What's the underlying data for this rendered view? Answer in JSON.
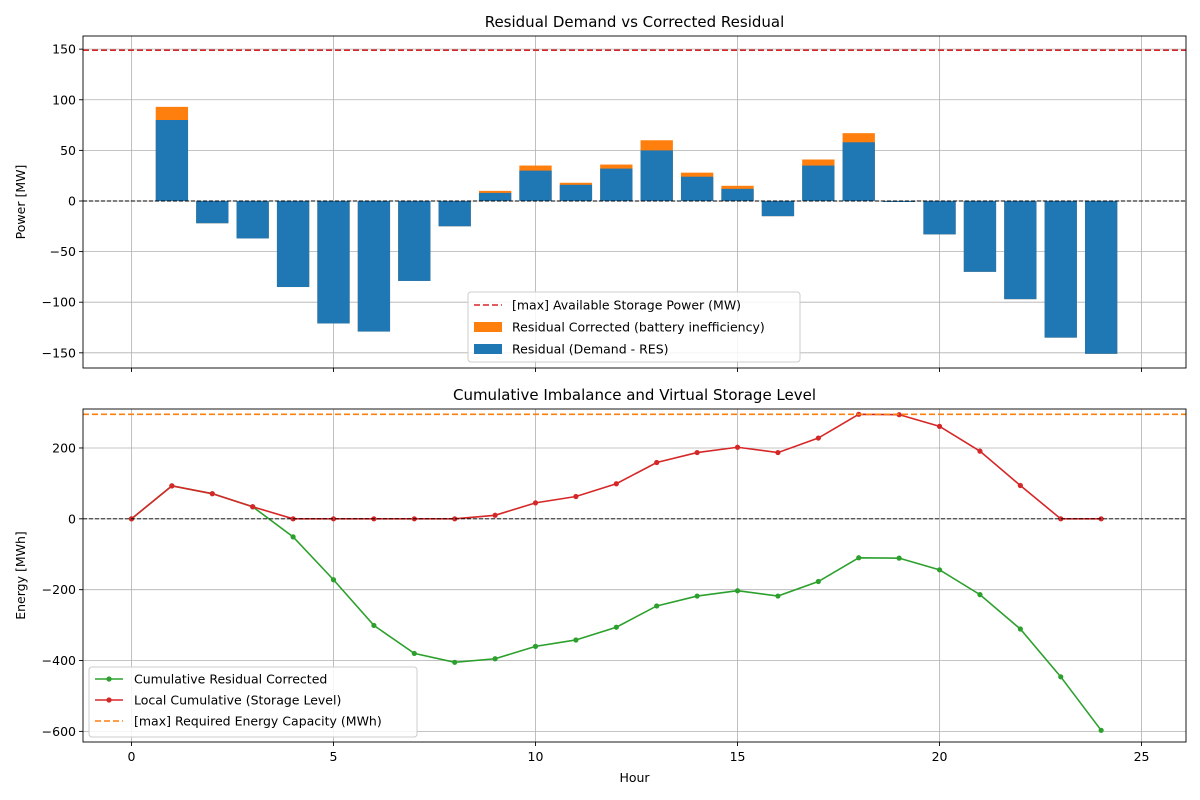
{
  "chart_data": [
    {
      "type": "bar",
      "title": "Residual Demand vs Corrected Residual",
      "xlabel": "",
      "ylabel": "Power [MW]",
      "xlim": [
        -1.2,
        26.1
      ],
      "ylim": [
        -165,
        163
      ],
      "xticks": [
        0,
        5,
        10,
        15,
        20,
        25
      ],
      "xtick_labels": [
        "",
        "",
        "",
        "",
        "",
        ""
      ],
      "yticks": [
        -150,
        -100,
        -50,
        0,
        50,
        100,
        150
      ],
      "ytick_labels": [
        "−150",
        "−100",
        "−50",
        "0",
        "50",
        "100",
        "150"
      ],
      "grid": true,
      "legend_position": "lower center",
      "categories": [
        1,
        2,
        3,
        4,
        5,
        6,
        7,
        8,
        9,
        10,
        11,
        12,
        13,
        14,
        15,
        16,
        17,
        18,
        19,
        20,
        21,
        22,
        23,
        24
      ],
      "series": [
        {
          "name": "Residual Corrected (battery inefficiency)",
          "color": "#ff7f0e",
          "values": [
            93,
            -22,
            -37,
            -85,
            -121,
            -129,
            -79,
            -25,
            10,
            35,
            18,
            36,
            60,
            28,
            15,
            -15,
            41,
            67,
            -1,
            -33,
            -70,
            -97,
            -135,
            -151
          ]
        },
        {
          "name": "Residual (Demand - RES)",
          "color": "#1f77b4",
          "values": [
            80,
            -22,
            -37,
            -85,
            -121,
            -129,
            -79,
            -25,
            8,
            30,
            16,
            32,
            50,
            24,
            12,
            -15,
            35,
            58,
            -1,
            -33,
            -70,
            -97,
            -135,
            -151
          ]
        }
      ],
      "hlines": [
        {
          "name": "[max] Available Storage Power (MW)",
          "y": 149,
          "color": "#d62728",
          "style": "dashed"
        },
        {
          "name": "",
          "y": 0,
          "color": "#000000",
          "style": "dashed"
        }
      ]
    },
    {
      "type": "line",
      "title": "Cumulative Imbalance and Virtual Storage Level",
      "xlabel": "Hour",
      "ylabel": "Energy [MWh]",
      "xlim": [
        -1.2,
        26.1
      ],
      "ylim": [
        -630,
        310
      ],
      "xticks": [
        0,
        5,
        10,
        15,
        20,
        25
      ],
      "xtick_labels": [
        "0",
        "5",
        "10",
        "15",
        "20",
        "25"
      ],
      "yticks": [
        -600,
        -400,
        -200,
        0,
        200
      ],
      "ytick_labels": [
        "−600",
        "−400",
        "−200",
        "0",
        "200"
      ],
      "grid": true,
      "legend_position": "lower left",
      "x": [
        0,
        1,
        2,
        3,
        4,
        5,
        6,
        7,
        8,
        9,
        10,
        11,
        12,
        13,
        14,
        15,
        16,
        17,
        18,
        19,
        20,
        21,
        22,
        23,
        24
      ],
      "series": [
        {
          "name": "Cumulative Residual Corrected",
          "color": "#2ca02c",
          "values": [
            0,
            93,
            71,
            34,
            -51,
            -172,
            -301,
            -380,
            -405,
            -395,
            -360,
            -342,
            -306,
            -246,
            -218,
            -203,
            -218,
            -177,
            -110,
            -111,
            -144,
            -214,
            -311,
            -446,
            -597
          ]
        },
        {
          "name": "Local Cumulative (Storage Level)",
          "color": "#d62728",
          "values": [
            0,
            93,
            71,
            34,
            0,
            0,
            0,
            0,
            0,
            10,
            45,
            63,
            99,
            159,
            187,
            202,
            187,
            228,
            295,
            294,
            261,
            191,
            94,
            0,
            0
          ]
        }
      ],
      "hlines": [
        {
          "name": "[max] Required Energy Capacity (MWh)",
          "y": 295,
          "color": "#ff7f0e",
          "style": "dashed"
        },
        {
          "name": "",
          "y": 0,
          "color": "#000000",
          "style": "dashed"
        }
      ]
    }
  ]
}
